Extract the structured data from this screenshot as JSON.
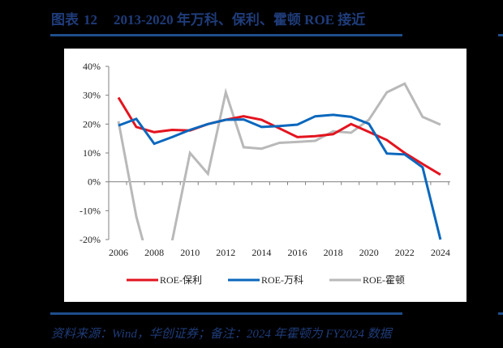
{
  "header": {
    "figure_label": "图表",
    "figure_number": "12",
    "title": "2013-2020 年万科、保利、霍顿 ROE 接近"
  },
  "footer": {
    "source": "资料来源：Wind，华创证券；备注：2024 年霍顿为 FY2024 数据"
  },
  "colors": {
    "brand": "#1f4e8c",
    "title_text": "#1f3c7a",
    "poly": "#e3141f",
    "vanke": "#0a67bd",
    "horton": "#b9b9b9"
  },
  "chart_data": {
    "type": "line",
    "title": "2013-2020 年万科、保利、霍顿 ROE 接近",
    "xlabel": "",
    "ylabel": "",
    "x": [
      2006,
      2007,
      2008,
      2009,
      2010,
      2011,
      2012,
      2013,
      2014,
      2015,
      2016,
      2017,
      2018,
      2019,
      2020,
      2021,
      2022,
      2023,
      2024
    ],
    "x_tick_labels": [
      "2006",
      "2008",
      "2010",
      "2012",
      "2014",
      "2016",
      "2018",
      "2020",
      "2022",
      "2024"
    ],
    "y_tick_labels": [
      "40%",
      "30%",
      "20%",
      "10%",
      "0%",
      "-10%",
      "-20%"
    ],
    "ylim": [
      -20,
      40
    ],
    "grid": false,
    "legend_position": "bottom",
    "series": [
      {
        "name": "ROE-保利",
        "color": "#e3141f",
        "values": [
          29.2,
          19.0,
          17.2,
          18.0,
          17.8,
          20.0,
          21.5,
          22.7,
          21.5,
          18.5,
          15.5,
          15.8,
          16.5,
          20.0,
          17.3,
          14.5,
          10.0,
          6.2,
          2.5
        ]
      },
      {
        "name": "ROE-万科",
        "color": "#0a67bd",
        "values": [
          19.5,
          21.8,
          13.2,
          15.5,
          18.0,
          20.0,
          21.5,
          21.6,
          19.0,
          19.3,
          19.8,
          22.7,
          23.2,
          22.5,
          20.1,
          9.8,
          9.5,
          5.0,
          -20.0
        ]
      },
      {
        "name": "ROE-霍顿",
        "color": "#b9b9b9",
        "values": [
          21.0,
          -12.0,
          -35.0,
          -20.5,
          10.0,
          2.8,
          31.0,
          12.0,
          11.5,
          13.5,
          13.8,
          14.2,
          17.5,
          17.0,
          21.5,
          31.0,
          34.0,
          22.5,
          19.8
        ]
      }
    ],
    "annotations": [
      "2024 年霍顿为 FY2024 数据"
    ]
  }
}
